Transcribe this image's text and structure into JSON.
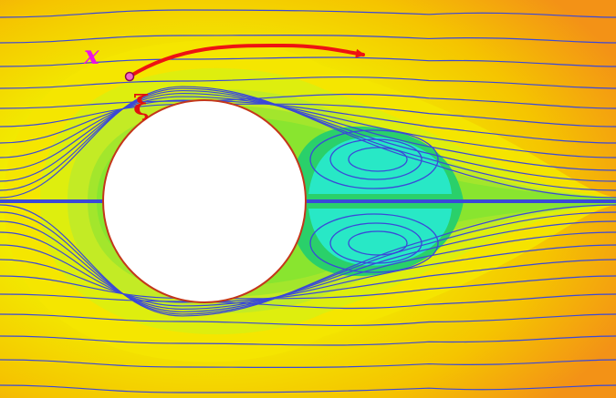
{
  "figure": {
    "description_labels": {
      "x_label": "x",
      "xi_label": "ξ"
    },
    "colors": {
      "far_field": "#f59a1a",
      "mid_field": "#f5e000",
      "near_field": "#b9ea2e",
      "boundary_layer": "#82e62e",
      "wake": "#23cf64",
      "vortex_core": "#28e8c6",
      "streamline": "#3a48d8",
      "body": "#ffffff",
      "body_edge": "#c4361a",
      "arrow": "#ee1212",
      "x_label_color": "#ee10e6",
      "xi_label_color": "#e01010",
      "marker_fill": "#f064c8"
    }
  }
}
